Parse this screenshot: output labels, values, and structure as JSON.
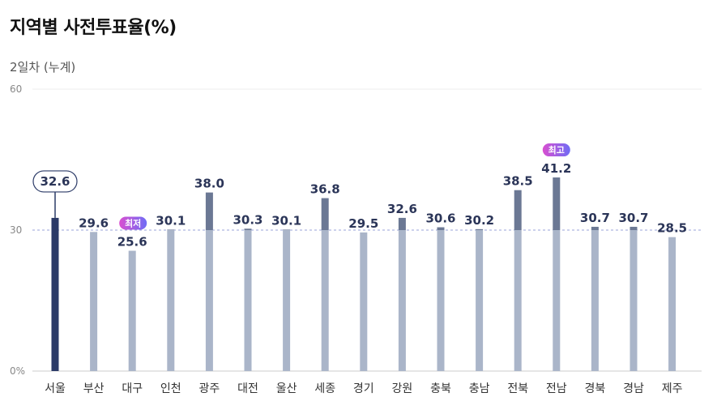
{
  "header": {
    "title": "지역별 사전투표율(%)",
    "subtitle": "2일차 (누계)"
  },
  "colors": {
    "highlight": "#2b3a67",
    "above": "#6b7894",
    "base": "#aab5c9",
    "badge_start": "#d94fd0",
    "badge_end": "#6f6cf5",
    "ref_line": "#9aa3d8"
  },
  "chart_data": {
    "type": "bar",
    "title": "지역별 사전투표율(%)",
    "subtitle": "2일차 (누계)",
    "categories": [
      "서울",
      "부산",
      "대구",
      "인천",
      "광주",
      "대전",
      "울산",
      "세종",
      "경기",
      "강원",
      "충북",
      "충남",
      "전북",
      "전남",
      "경북",
      "경남",
      "제주"
    ],
    "values": [
      32.6,
      29.6,
      25.6,
      30.1,
      38.0,
      30.3,
      30.1,
      36.8,
      29.5,
      32.6,
      30.6,
      30.2,
      38.5,
      41.2,
      30.7,
      30.7,
      28.5
    ],
    "ylim": [
      0,
      60
    ],
    "yticks": [
      "0%",
      "30",
      "60"
    ],
    "ytick_values": [
      0,
      30,
      60
    ],
    "reference_value": 30,
    "highlight_category": "서울",
    "badges": [
      {
        "category": "대구",
        "text": "최저"
      },
      {
        "category": "전남",
        "text": "최고"
      }
    ],
    "grid": true,
    "legend": "none"
  }
}
